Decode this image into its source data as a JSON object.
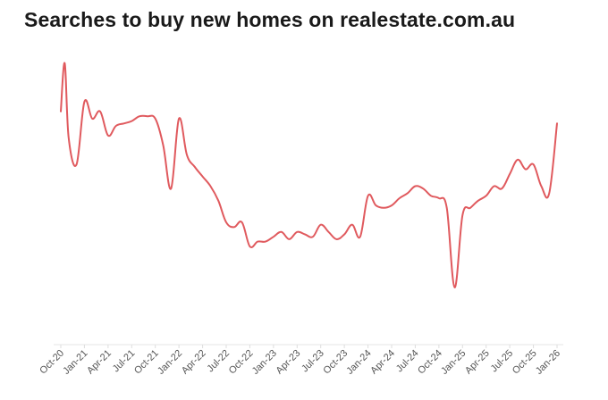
{
  "chart_data": {
    "type": "line",
    "title": "Searches to buy new homes on realestate.com.au",
    "xlabel": "",
    "ylabel": "",
    "x_ticks": [
      "Oct-20",
      "Jan-21",
      "Apr-21",
      "Jul-21",
      "Oct-21",
      "Jan-22",
      "Apr-22",
      "Jul-22",
      "Oct-22",
      "Jan-23",
      "Apr-23",
      "Jul-23",
      "Oct-23",
      "Jan-24",
      "Apr-24",
      "Jul-24",
      "Oct-24",
      "Jan-25",
      "Apr-25",
      "Jul-25",
      "Oct-25",
      "Jan-26"
    ],
    "y_axis_shown": false,
    "ylim": [
      0,
      100
    ],
    "grid": false,
    "legend": "none",
    "series": [
      {
        "color": "#e05a5e",
        "points": [
          [
            "Oct-20",
            76
          ],
          [
            "Oct-20+",
            96
          ],
          [
            "Nov-20",
            65
          ],
          [
            "Dec-20",
            54
          ],
          [
            "Jan-21",
            80
          ],
          [
            "Feb-21",
            73
          ],
          [
            "Mar-21",
            76
          ],
          [
            "Apr-21",
            66
          ],
          [
            "May-21",
            70
          ],
          [
            "Jun-21",
            71
          ],
          [
            "Jul-21",
            72
          ],
          [
            "Aug-21",
            74
          ],
          [
            "Sep-21",
            74
          ],
          [
            "Oct-21",
            73
          ],
          [
            "Nov-21",
            62
          ],
          [
            "Dec-21",
            44
          ],
          [
            "Jan-22",
            73
          ],
          [
            "Feb-22",
            58
          ],
          [
            "Mar-22",
            53
          ],
          [
            "Apr-22",
            49
          ],
          [
            "May-22",
            45
          ],
          [
            "Jun-22",
            39
          ],
          [
            "Jul-22",
            30
          ],
          [
            "Aug-22",
            28
          ],
          [
            "Sep-22",
            30
          ],
          [
            "Oct-22",
            20
          ],
          [
            "Nov-22",
            22
          ],
          [
            "Dec-22",
            22
          ],
          [
            "Jan-23",
            24
          ],
          [
            "Feb-23",
            26
          ],
          [
            "Mar-23",
            23
          ],
          [
            "Apr-23",
            26
          ],
          [
            "May-23",
            25
          ],
          [
            "Jun-23",
            24
          ],
          [
            "Jul-23",
            29
          ],
          [
            "Aug-23",
            26
          ],
          [
            "Sep-23",
            23
          ],
          [
            "Oct-23",
            25
          ],
          [
            "Nov-23",
            29
          ],
          [
            "Dec-23",
            24
          ],
          [
            "Jan-24",
            41
          ],
          [
            "Feb-24",
            37
          ],
          [
            "Mar-24",
            36
          ],
          [
            "Apr-24",
            37
          ],
          [
            "May-24",
            40
          ],
          [
            "Jun-24",
            42
          ],
          [
            "Jul-24",
            45
          ],
          [
            "Aug-24",
            44
          ],
          [
            "Sep-24",
            41
          ],
          [
            "Oct-24",
            40
          ],
          [
            "Nov-24",
            36
          ],
          [
            "Dec-24",
            3
          ],
          [
            "Jan-25",
            33
          ],
          [
            "Feb-25",
            36
          ],
          [
            "Mar-25",
            39
          ],
          [
            "Apr-25",
            41
          ],
          [
            "May-25",
            45
          ],
          [
            "Jun-25",
            44
          ],
          [
            "Jul-25",
            50
          ],
          [
            "Aug-25",
            56
          ],
          [
            "Sep-25",
            52
          ],
          [
            "Oct-25",
            54
          ],
          [
            "Nov-25",
            45
          ],
          [
            "Dec-25",
            42
          ],
          [
            "Jan-26",
            71
          ]
        ]
      }
    ]
  }
}
